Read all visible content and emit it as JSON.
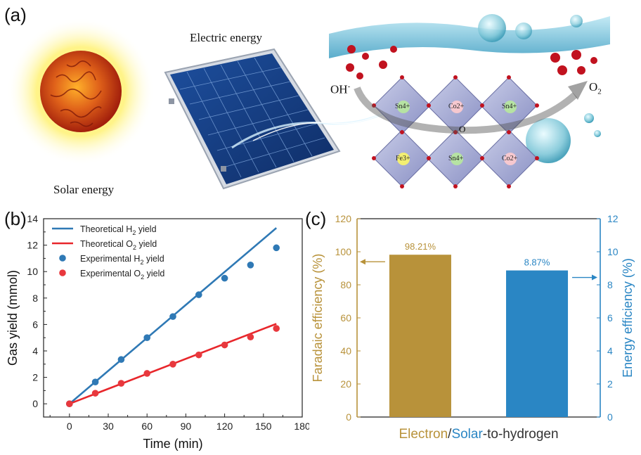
{
  "panel_a": {
    "label": "(a)",
    "solar_label": "Solar energy",
    "electric_label": "Electric energy",
    "oh_label": "OH",
    "oh_sup": "-",
    "o2_label": "O",
    "o2_sub": "2",
    "o_label": "O",
    "octahedra_labels": [
      "Sn4+",
      "Co2+",
      "Sn4+",
      "Fe3+",
      "Sn4+",
      "Co2+"
    ]
  },
  "chart_data": [
    {
      "type": "line",
      "panel_label": "(b)",
      "xlabel": "Time (min)",
      "ylabel": "Gas yield (mmol)",
      "xlim": [
        -20,
        180
      ],
      "ylim": [
        -1,
        14
      ],
      "xticks": [
        0,
        30,
        60,
        90,
        120,
        150,
        180
      ],
      "yticks": [
        0,
        2,
        4,
        6,
        8,
        10,
        12,
        14
      ],
      "series": [
        {
          "name": "Theoretical H2 yield",
          "kind": "line",
          "color": "#2f79b5",
          "x": [
            0,
            160
          ],
          "y": [
            0,
            13.3
          ]
        },
        {
          "name": "Theoretical O2 yield",
          "kind": "line",
          "color": "#e8262b",
          "x": [
            0,
            160
          ],
          "y": [
            0,
            6.05
          ]
        },
        {
          "name": "Experimental H2 yield",
          "kind": "scatter",
          "color": "#2f79b5",
          "x": [
            0,
            20,
            40,
            60,
            80,
            100,
            120,
            140,
            160
          ],
          "y": [
            0,
            1.65,
            3.35,
            5.0,
            6.6,
            8.25,
            9.5,
            10.5,
            11.8
          ]
        },
        {
          "name": "Experimental O2 yield",
          "kind": "scatter",
          "color": "#e8383d",
          "x": [
            0,
            20,
            40,
            60,
            80,
            100,
            120,
            140,
            160
          ],
          "y": [
            0,
            0.8,
            1.55,
            2.3,
            3.0,
            3.7,
            4.45,
            5.05,
            5.7
          ]
        }
      ],
      "legend": {
        "placement": "top-left",
        "entries": [
          {
            "prefix": "Theoretical H",
            "sub": "2",
            "suffix": " yield"
          },
          {
            "prefix": "Theoretical O",
            "sub": "2",
            "suffix": " yield"
          },
          {
            "prefix": "Experimental H",
            "sub": "2",
            "suffix": " yield"
          },
          {
            "prefix": "Experimental O",
            "sub": "2",
            "suffix": " yield"
          }
        ]
      }
    },
    {
      "type": "bar",
      "panel_label": "(c)",
      "xlabel_parts": [
        {
          "text": "Electron",
          "color": "#b8923a"
        },
        {
          "text": "/",
          "color": "#333333"
        },
        {
          "text": "Solar",
          "color": "#2a86c4"
        },
        {
          "text": "-to-hydrogen",
          "color": "#333333"
        }
      ],
      "ylabel_left": "Faradaic efficiency (%)",
      "ylabel_right": "Energy efficiency (%)",
      "ylim_left": [
        0,
        120
      ],
      "ylim_right": [
        0,
        12
      ],
      "yticks_left": [
        0,
        20,
        40,
        60,
        80,
        100,
        120
      ],
      "yticks_right": [
        0,
        2,
        4,
        6,
        8,
        10,
        12
      ],
      "left_color": "#b8923a",
      "right_color": "#2a86c4",
      "bars": [
        {
          "axis": "left",
          "value": 98.21,
          "label": "98.21%",
          "color": "#b8923a"
        },
        {
          "axis": "right",
          "value": 8.87,
          "label": "8.87%",
          "color": "#2a86c4"
        }
      ]
    }
  ]
}
